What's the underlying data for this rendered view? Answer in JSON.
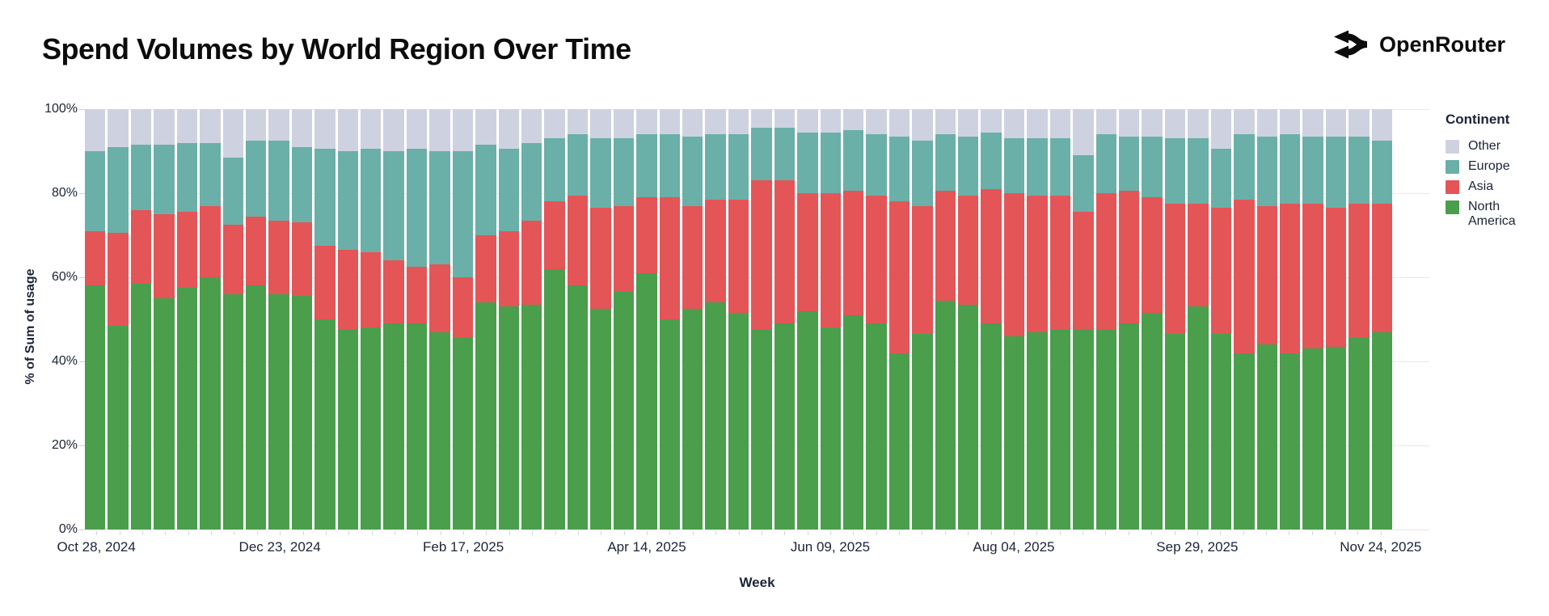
{
  "header": {
    "title": "Spend Volumes by World Region Over Time",
    "brand": {
      "name": "OpenRouter",
      "icon": "openrouter-fork-arrows-icon"
    }
  },
  "chart_data": {
    "type": "bar",
    "variant": "stacked-100-percent-columns",
    "title": "Spend Volumes by World Region Over Time",
    "xlabel": "Week",
    "ylabel": "% of Sum of usage",
    "ylim": [
      0,
      100
    ],
    "grid": true,
    "bar_count": 57,
    "y_tick_labels": [
      "100%",
      "80%",
      "60%",
      "40%",
      "20%",
      "0%"
    ],
    "x_ticks": [
      {
        "bar_index": 0,
        "label": "Oct 28, 2024"
      },
      {
        "bar_index": 8,
        "label": "Dec 23, 2024"
      },
      {
        "bar_index": 16,
        "label": "Feb 17, 2025"
      },
      {
        "bar_index": 24,
        "label": "Apr 14, 2025"
      },
      {
        "bar_index": 32,
        "label": "Jun 09, 2025"
      },
      {
        "bar_index": 40,
        "label": "Aug 04, 2025"
      },
      {
        "bar_index": 48,
        "label": "Sep 29, 2025"
      },
      {
        "bar_index": 56,
        "label": "Nov 24, 2025"
      }
    ],
    "legend": {
      "title": "Continent",
      "position": "right",
      "entries": [
        {
          "label": "Other",
          "color": "#ced2e0"
        },
        {
          "label": "Europe",
          "color": "#6ab0a8"
        },
        {
          "label": "Asia",
          "color": "#e45558"
        },
        {
          "label": "North America",
          "color": "#4a9e4c"
        }
      ]
    },
    "series": [
      {
        "name": "North America",
        "color": "#4a9e4c",
        "values": [
          58,
          48.5,
          58.5,
          55,
          57.5,
          60,
          56,
          58,
          56,
          55.5,
          50,
          47.5,
          48,
          49,
          49,
          47,
          45.5,
          54,
          53,
          53.5,
          62,
          58,
          52.5,
          56.5,
          61,
          50,
          52.5,
          54,
          51.5,
          47.5,
          49,
          52,
          48,
          51,
          49,
          42,
          46.5,
          54.5,
          53.5,
          49,
          46,
          47,
          47.5,
          47.5,
          47.5,
          49,
          51.5,
          46.5,
          53,
          46.5,
          42,
          44,
          42,
          43,
          43.5,
          45.5,
          47
        ]
      },
      {
        "name": "Asia",
        "color": "#e45558",
        "values": [
          13,
          22,
          17.5,
          20,
          18,
          17,
          16.5,
          16.5,
          17.5,
          17.5,
          17.5,
          19,
          18,
          15,
          13.5,
          16,
          14.5,
          16,
          18,
          20,
          16,
          21.5,
          24,
          20.5,
          18,
          29,
          24.5,
          24.5,
          27,
          35.5,
          34,
          28,
          32,
          29.5,
          30.5,
          36,
          30.5,
          26,
          26,
          32,
          34,
          32.5,
          32,
          28,
          32.5,
          31.5,
          27.5,
          31,
          24.5,
          30,
          36.5,
          33,
          35.5,
          34.5,
          33,
          32,
          30.5
        ]
      },
      {
        "name": "Europe",
        "color": "#6ab0a8",
        "values": [
          19,
          20.5,
          15.5,
          16.5,
          16.5,
          15,
          16,
          18,
          19,
          18,
          23,
          23.5,
          24.5,
          26,
          28,
          27,
          30,
          21.5,
          19.5,
          18.5,
          15,
          14.5,
          16.5,
          16,
          15,
          15,
          16.5,
          15.5,
          15.5,
          12.5,
          12.5,
          14.5,
          14.5,
          14.5,
          14.5,
          15.5,
          15.5,
          13.5,
          14,
          13.5,
          13,
          13.5,
          13.5,
          13.5,
          14,
          13,
          14.5,
          15.5,
          15.5,
          14,
          15.5,
          16.5,
          16.5,
          16,
          17,
          16,
          15
        ]
      },
      {
        "name": "Other",
        "color": "#ced2e0",
        "values": [
          10,
          9,
          8.5,
          8.5,
          8,
          8,
          11.5,
          7.5,
          7.5,
          9,
          9.5,
          10,
          9.5,
          10,
          9.5,
          10,
          10,
          8.5,
          9.5,
          8,
          7,
          6,
          7,
          7,
          6,
          6,
          6.5,
          6,
          6,
          4.5,
          4.5,
          5.5,
          5.5,
          5,
          6,
          6.5,
          7.5,
          6,
          6.5,
          5.5,
          7,
          7,
          7,
          11,
          6,
          6.5,
          6.5,
          7,
          7,
          9.5,
          6,
          6.5,
          6,
          6.5,
          6.5,
          6.5,
          7.5
        ]
      }
    ]
  }
}
